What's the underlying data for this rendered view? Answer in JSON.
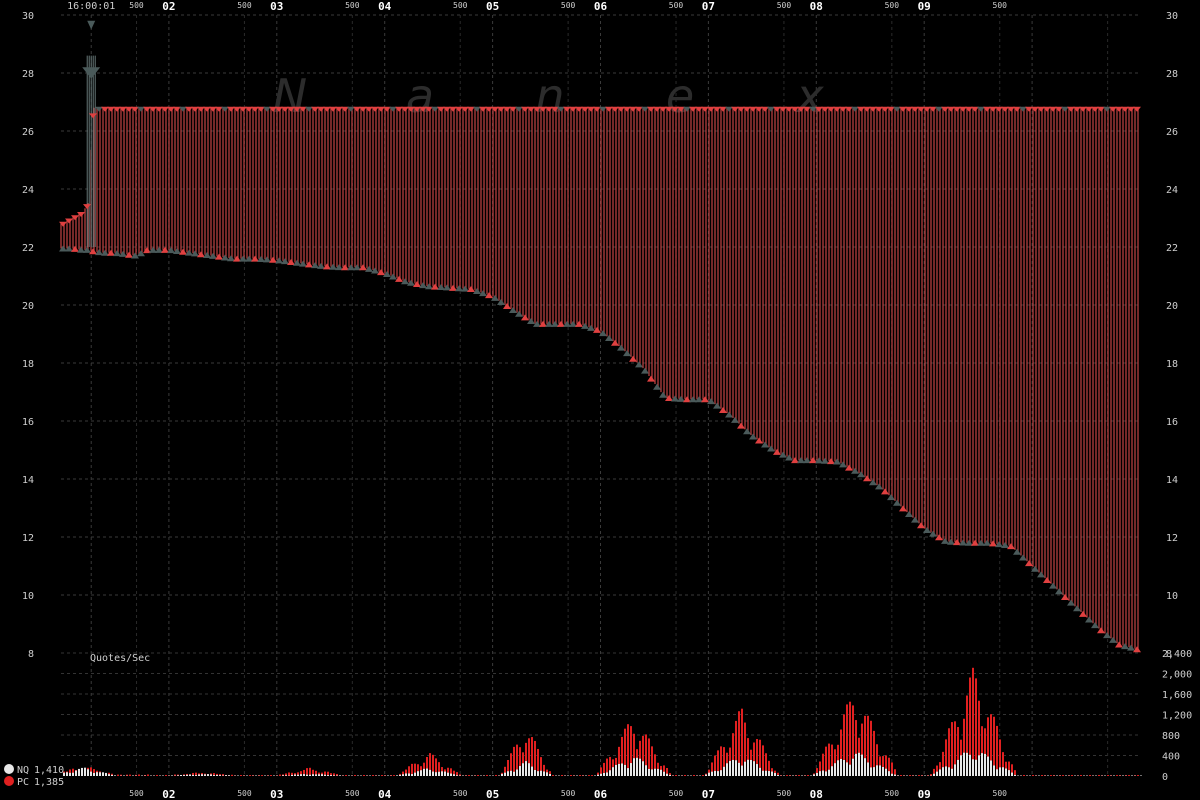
{
  "watermark": [
    "N",
    "a",
    "n",
    "e",
    "x"
  ],
  "chart_data": [
    {
      "type": "line",
      "ylim": [
        8,
        30
      ],
      "y_ticks": [
        8,
        10,
        12,
        14,
        16,
        18,
        20,
        22,
        24,
        26,
        28,
        30
      ],
      "x_start_label": "16:00:01",
      "x_major_labels": [
        "02",
        "03",
        "04",
        "05",
        "06",
        "07",
        "08",
        "09"
      ],
      "x_minor_label": "500",
      "grid": true,
      "series": [
        {
          "role": "ask",
          "color": "#e04040",
          "x": [
            0,
            0.1,
            0.2,
            0.25,
            0.3,
            0.4,
            0.5,
            0.6,
            0.7,
            0.8,
            0.9,
            1.0,
            1.2,
            1.4,
            1.6,
            1.8,
            2.0,
            2.2,
            2.4,
            2.6,
            2.8,
            3.0,
            3.2,
            3.4,
            3.6,
            3.8,
            4.0,
            4.2,
            4.4,
            4.6,
            4.8,
            5.0,
            5.2,
            5.4,
            5.6,
            5.8,
            6.0,
            6.2,
            6.4,
            6.6,
            6.8,
            7.0,
            7.2,
            7.4,
            7.6,
            7.8,
            8.0,
            8.2,
            8.4,
            8.6,
            8.8,
            9.0,
            9.2,
            9.4,
            9.6,
            9.8,
            10.0
          ],
          "y": [
            22.8,
            23.0,
            23.2,
            23.5,
            26.8,
            26.8,
            26.8,
            26.8,
            26.8,
            26.8,
            26.8,
            26.8,
            26.8,
            26.8,
            26.8,
            26.8,
            26.8,
            26.8,
            26.8,
            26.8,
            26.8,
            26.8,
            26.8,
            26.8,
            26.8,
            26.8,
            26.8,
            26.8,
            26.8,
            26.8,
            26.8,
            26.8,
            26.8,
            26.8,
            26.8,
            26.8,
            26.8,
            26.8,
            26.8,
            26.8,
            26.8,
            26.8,
            26.8,
            26.8,
            26.8,
            26.8,
            26.8,
            26.8,
            26.8,
            26.8,
            26.8,
            26.8,
            26.8,
            26.8,
            26.8,
            26.8,
            26.8
          ]
        },
        {
          "role": "bid",
          "color": "#4a5a5a",
          "x": [
            0,
            0.1,
            0.2,
            0.25,
            0.3,
            0.4,
            0.5,
            0.6,
            0.7,
            0.8,
            0.9,
            1.0,
            1.2,
            1.4,
            1.6,
            1.8,
            2.0,
            2.2,
            2.4,
            2.6,
            2.8,
            3.0,
            3.2,
            3.4,
            3.6,
            3.8,
            4.0,
            4.2,
            4.4,
            4.6,
            4.8,
            5.0,
            5.2,
            5.4,
            5.6,
            5.8,
            6.0,
            6.2,
            6.4,
            6.6,
            6.8,
            7.0,
            7.2,
            7.4,
            7.6,
            7.8,
            8.0,
            8.2,
            8.4,
            8.6,
            8.8,
            9.0,
            9.2,
            9.4,
            9.6,
            9.8,
            10.0
          ],
          "y": [
            21.95,
            21.95,
            21.9,
            21.9,
            21.85,
            21.8,
            21.8,
            21.75,
            21.7,
            21.9,
            21.9,
            21.9,
            21.8,
            21.7,
            21.6,
            21.6,
            21.55,
            21.45,
            21.35,
            21.3,
            21.3,
            21.1,
            20.8,
            20.65,
            20.6,
            20.55,
            20.3,
            19.8,
            19.35,
            19.35,
            19.35,
            19.1,
            18.5,
            17.8,
            16.8,
            16.75,
            16.75,
            16.2,
            15.5,
            15.0,
            14.65,
            14.65,
            14.6,
            14.2,
            13.7,
            13.0,
            12.3,
            11.85,
            11.8,
            11.8,
            11.7,
            11.0,
            10.3,
            9.6,
            8.9,
            8.3,
            8.1
          ]
        }
      ],
      "spike": {
        "x": 0.28,
        "y": 29.8
      }
    },
    {
      "type": "bar",
      "title": "Quotes/Sec",
      "ylim": [
        0,
        2400
      ],
      "y_ticks": [
        0,
        400,
        800,
        1200,
        1600,
        2000,
        2400
      ],
      "y_tick_labels": [
        "0",
        "400",
        "800",
        "1,200",
        "1,600",
        "2,000",
        "2,400"
      ],
      "series": [
        {
          "name": "NQ",
          "value": "1,410",
          "color": "#e8e8e8",
          "clusters": [
            {
              "x": 0.2,
              "peak": 300,
              "width": 0.6
            },
            {
              "x": 1.3,
              "peak": 60,
              "width": 0.6
            },
            {
              "x": 2.3,
              "peak": 70,
              "width": 0.6
            },
            {
              "x": 3.4,
              "peak": 280,
              "width": 0.6
            },
            {
              "x": 4.3,
              "peak": 520,
              "width": 0.5
            },
            {
              "x": 5.3,
              "peak": 720,
              "width": 0.7
            },
            {
              "x": 6.3,
              "peak": 760,
              "width": 0.7
            },
            {
              "x": 7.35,
              "peak": 900,
              "width": 0.8
            },
            {
              "x": 8.45,
              "peak": 1050,
              "width": 0.8
            }
          ]
        },
        {
          "name": "PC",
          "value": "1,385",
          "color": "#e02020",
          "clusters": [
            {
              "x": 0.2,
              "peak": 180,
              "width": 0.6
            },
            {
              "x": 1.3,
              "peak": 60,
              "width": 0.6
            },
            {
              "x": 2.3,
              "peak": 150,
              "width": 0.6
            },
            {
              "x": 3.4,
              "peak": 460,
              "width": 0.6
            },
            {
              "x": 4.3,
              "peak": 1000,
              "width": 0.5
            },
            {
              "x": 5.3,
              "peak": 1200,
              "width": 0.7
            },
            {
              "x": 6.3,
              "peak": 1350,
              "width": 0.7
            },
            {
              "x": 7.35,
              "peak": 1700,
              "width": 0.8
            },
            {
              "x": 8.45,
              "peak": 2150,
              "width": 0.8
            }
          ]
        }
      ]
    }
  ]
}
